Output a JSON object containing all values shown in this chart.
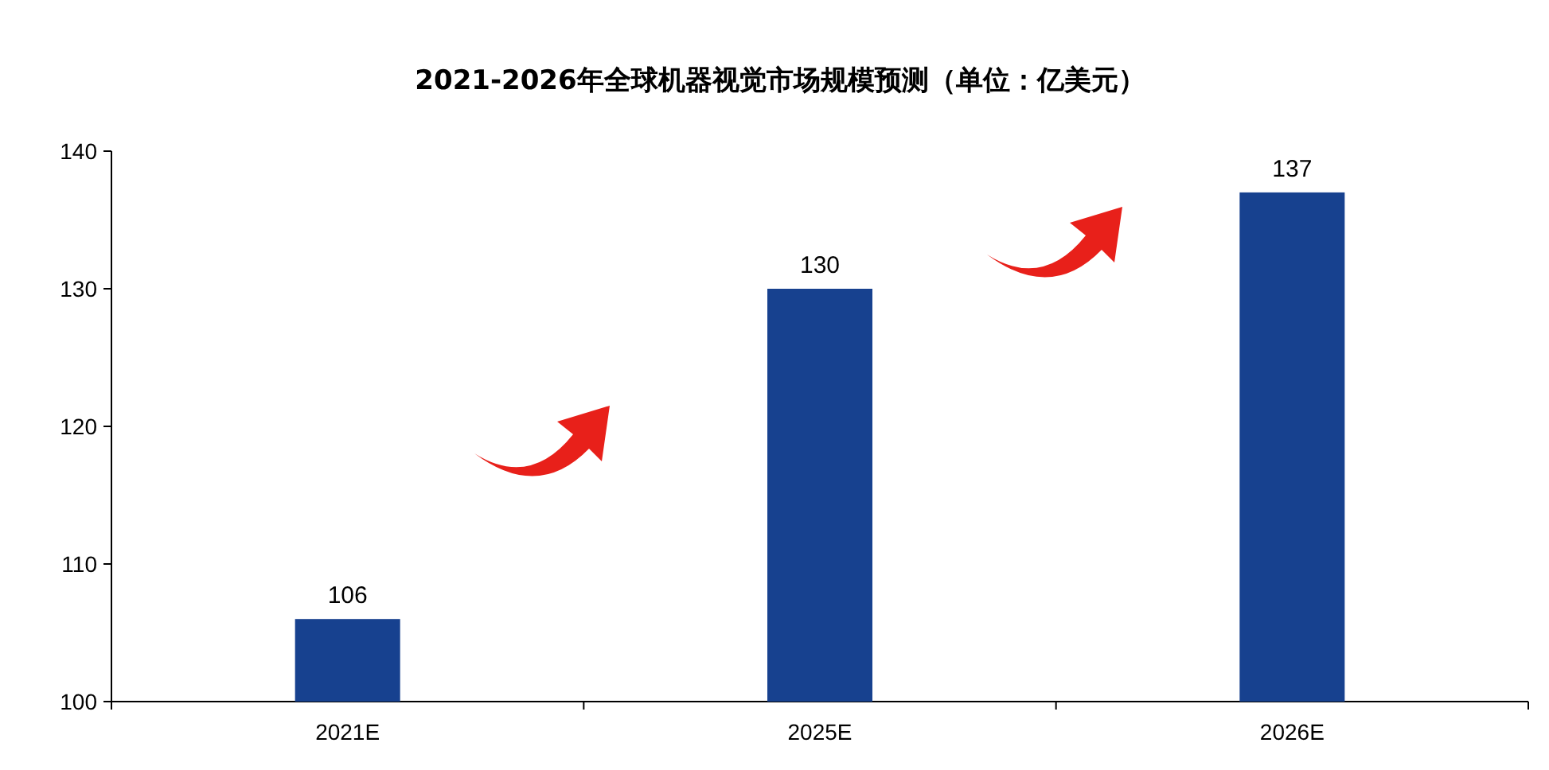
{
  "chart_data": {
    "type": "bar",
    "title": "2021-2026年全球机器视觉市场规模预测（单位：亿美元）",
    "categories": [
      "2021E",
      "2025E",
      "2026E"
    ],
    "values": [
      106,
      130,
      137
    ],
    "color": "#17418f",
    "ylim": [
      100,
      140
    ],
    "yticks": [
      100,
      110,
      120,
      130,
      140
    ],
    "data_labels": true
  }
}
